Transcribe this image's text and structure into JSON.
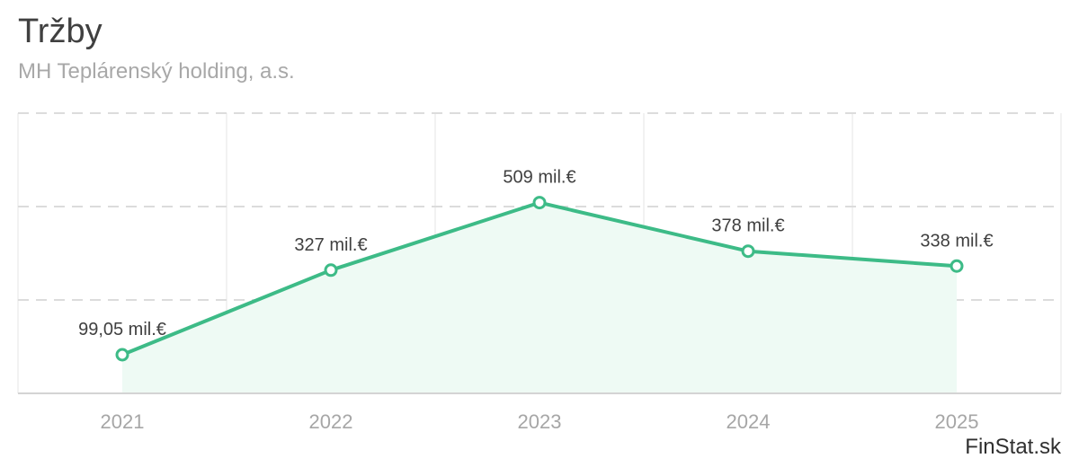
{
  "header": {
    "title": "Tržby",
    "subtitle": "MH Teplárenský holding, a.s."
  },
  "footer": {
    "brand": "FinStat.sk"
  },
  "colors": {
    "line": "#3dbb87",
    "area": "#eefaf4",
    "grid_dashed": "#dcdcdc",
    "grid_vertical": "#e6e6e6",
    "axis": "#d4d4d4"
  },
  "chart_data": {
    "type": "area",
    "title": "Tržby",
    "subtitle": "MH Teplárenský holding, a.s.",
    "categories": [
      "2021",
      "2022",
      "2023",
      "2024",
      "2025"
    ],
    "series": [
      {
        "values": [
          99.05,
          327,
          509,
          378,
          338
        ],
        "labels": [
          "99,05 mil.€",
          "327 mil.€",
          "509 mil.€",
          "378 mil.€",
          "338 mil.€"
        ]
      }
    ],
    "ylim": [
      -5,
      750
    ],
    "grid": true
  }
}
